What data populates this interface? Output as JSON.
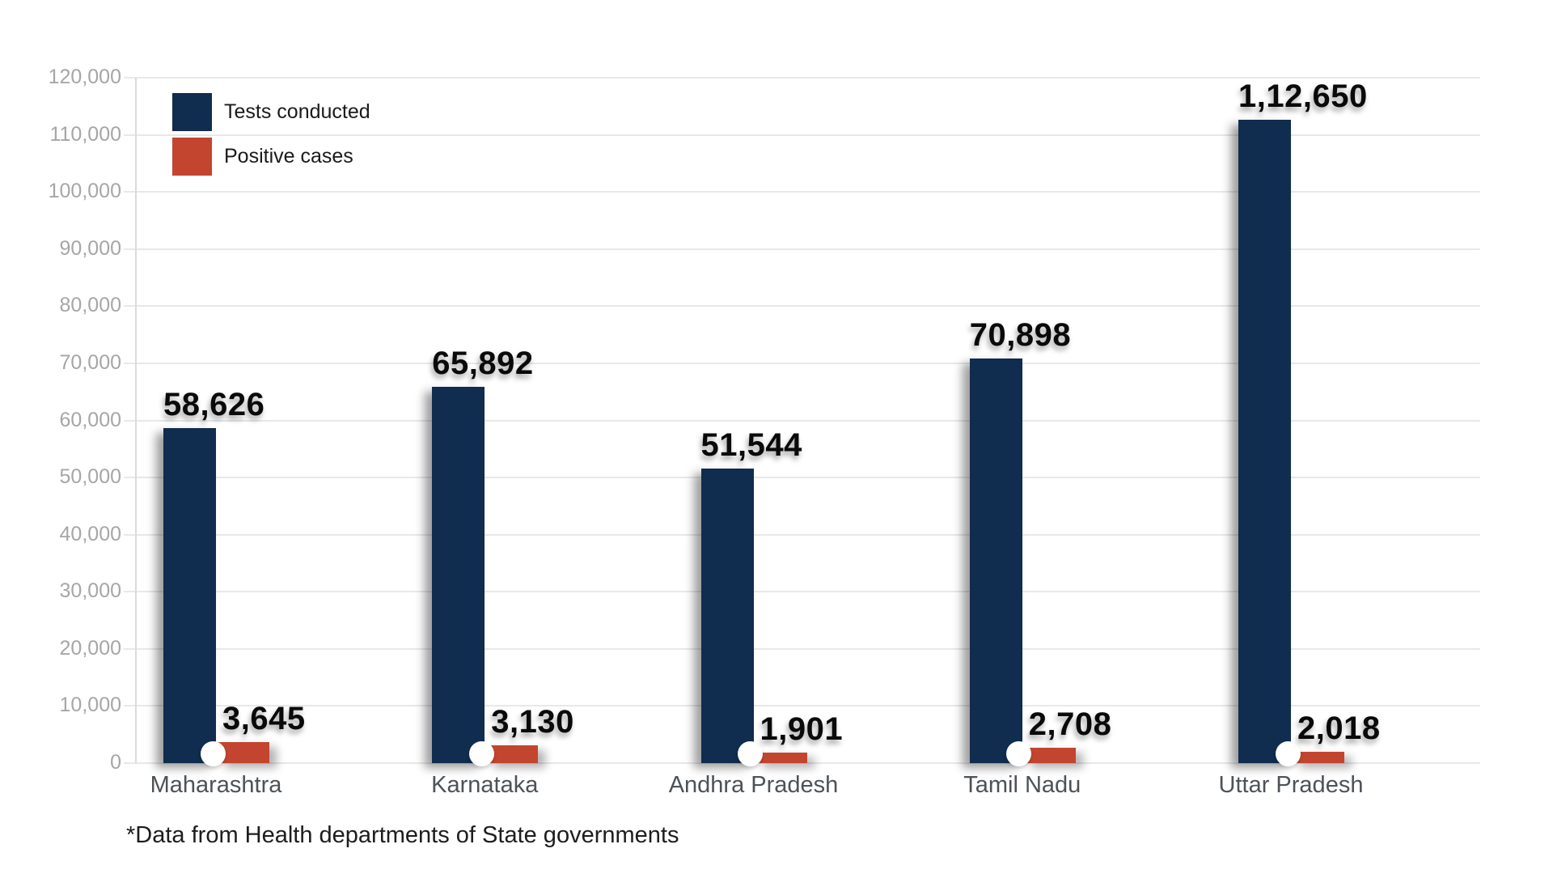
{
  "chart_data": {
    "type": "bar",
    "categories": [
      "Maharashtra",
      "Karnataka",
      "Andhra Pradesh",
      "Tamil Nadu",
      "Uttar Pradesh"
    ],
    "series": [
      {
        "name": "Tests conducted",
        "color": "#102c4e",
        "values": [
          58626,
          65892,
          51544,
          70898,
          112650
        ],
        "value_labels": [
          "58,626",
          "65,892",
          "51,544",
          "70,898",
          "1,12,650"
        ]
      },
      {
        "name": "Positive cases",
        "color": "#c3452f",
        "values": [
          3645,
          3130,
          1901,
          2708,
          2018
        ],
        "value_labels": [
          "3,645",
          "3,130",
          "1,901",
          "2,708",
          "2,018"
        ]
      }
    ],
    "title": "",
    "xlabel": "",
    "ylabel": "",
    "ylim": [
      0,
      120000
    ],
    "ytick_step": 10000,
    "ytick_labels": [
      "0",
      "10,000",
      "20,000",
      "30,000",
      "40,000",
      "50,000",
      "60,000",
      "70,000",
      "80,000",
      "90,000",
      "100,000",
      "110,000",
      "120,000"
    ],
    "grid": true,
    "legend_position": "top-left"
  },
  "footnote": "*Data from Health departments of State governments",
  "colors": {
    "tests_bar": "#102c4e",
    "positive_bar": "#c3452f",
    "gridline": "#e7e8ea",
    "tick_text": "#a6a6a6",
    "category_text": "#4d5257",
    "background": "#ffffff"
  }
}
